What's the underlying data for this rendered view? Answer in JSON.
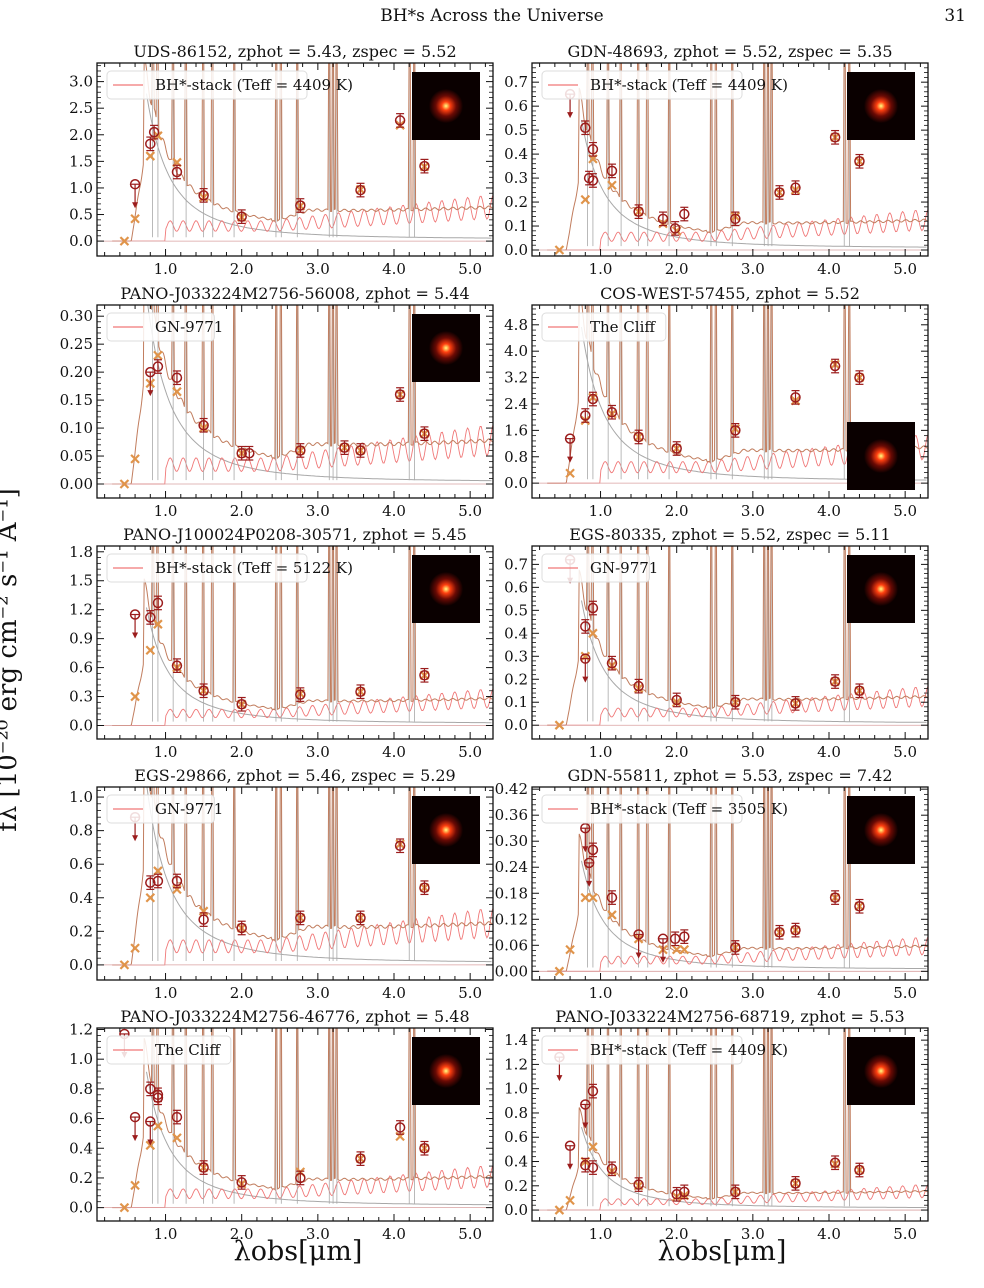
{
  "page": {
    "header_title": "BH*s Across the Universe",
    "page_number": "31"
  },
  "labels": {
    "ylabel": "fλ [10⁻²⁰ erg cm⁻² s⁻¹ Å⁻¹]",
    "xlabel": "λobs[μm]"
  },
  "colors": {
    "model": "#c17d5e",
    "template": "#f07878",
    "agn": "#a8a8a8",
    "obs": "#9b1c1c",
    "phot": "#e0944a"
  },
  "chart_data": [
    {
      "type": "line",
      "title": "UDS-86152, zphot = 5.43, zspec = 5.52",
      "legend": "BH*-stack (Teff = 4409 K)",
      "xlim": [
        0.1,
        5.3
      ],
      "ylim": [
        -0.28,
        3.35
      ],
      "yticks": [
        0.0,
        0.5,
        1.0,
        1.5,
        2.0,
        2.5,
        3.0
      ],
      "xticks": [
        1.0,
        2.0,
        3.0,
        4.0,
        5.0
      ],
      "inset": "top-right",
      "obs": [
        [
          0.6,
          1.07,
          1
        ],
        [
          0.8,
          1.83,
          0
        ],
        [
          0.85,
          2.05,
          0
        ],
        [
          1.15,
          1.3,
          0
        ],
        [
          1.5,
          0.86,
          0
        ],
        [
          2.0,
          0.46,
          0
        ],
        [
          2.77,
          0.67,
          0
        ],
        [
          3.56,
          0.96,
          0
        ],
        [
          4.08,
          2.27,
          0
        ],
        [
          4.4,
          1.41,
          0
        ]
      ],
      "phot": [
        [
          0.46,
          0.0
        ],
        [
          0.6,
          0.42
        ],
        [
          0.8,
          1.6
        ],
        [
          0.9,
          1.98
        ],
        [
          1.15,
          1.48
        ],
        [
          1.5,
          0.82
        ],
        [
          2.0,
          0.45
        ],
        [
          2.77,
          0.66
        ],
        [
          3.56,
          0.97
        ],
        [
          4.08,
          2.18
        ],
        [
          4.4,
          1.4
        ]
      ]
    },
    {
      "type": "line",
      "title": "GDN-48693, zphot = 5.52, zspec = 5.35",
      "legend": "BH*-stack (Teff = 4409 K)",
      "xlim": [
        0.1,
        5.3
      ],
      "ylim": [
        -0.025,
        0.78
      ],
      "yticks": [
        0.0,
        0.1,
        0.2,
        0.3,
        0.4,
        0.5,
        0.6,
        0.7
      ],
      "xticks": [
        1.0,
        2.0,
        3.0,
        4.0,
        5.0
      ],
      "inset": "top-right",
      "obs": [
        [
          0.6,
          0.65,
          1
        ],
        [
          0.8,
          0.51,
          0
        ],
        [
          0.85,
          0.3,
          0
        ],
        [
          0.9,
          0.42,
          0
        ],
        [
          0.9,
          0.29,
          0
        ],
        [
          1.15,
          0.33,
          0
        ],
        [
          1.5,
          0.16,
          0
        ],
        [
          1.82,
          0.13,
          0
        ],
        [
          1.98,
          0.09,
          0
        ],
        [
          2.1,
          0.15,
          0
        ],
        [
          2.77,
          0.13,
          0
        ],
        [
          3.35,
          0.24,
          0
        ],
        [
          3.56,
          0.26,
          0
        ],
        [
          4.08,
          0.47,
          0
        ],
        [
          4.4,
          0.37,
          0
        ]
      ],
      "phot": [
        [
          0.46,
          0.0
        ],
        [
          0.8,
          0.21
        ],
        [
          0.9,
          0.38
        ],
        [
          1.15,
          0.27
        ],
        [
          1.5,
          0.16
        ],
        [
          1.82,
          0.11
        ],
        [
          2.0,
          0.08
        ],
        [
          2.77,
          0.14
        ],
        [
          3.35,
          0.24
        ],
        [
          3.56,
          0.25
        ],
        [
          4.08,
          0.47
        ],
        [
          4.4,
          0.37
        ]
      ]
    },
    {
      "type": "line",
      "title": "PANO-J033224M2756-56008, zphot = 5.44",
      "legend": "GN-9771",
      "xlim": [
        0.1,
        5.3
      ],
      "ylim": [
        -0.025,
        0.32
      ],
      "yticks": [
        0.0,
        0.05,
        0.1,
        0.15,
        0.2,
        0.25,
        0.3
      ],
      "xticks": [
        1.0,
        2.0,
        3.0,
        4.0,
        5.0
      ],
      "inset": "top-right",
      "obs": [
        [
          0.8,
          0.2,
          1
        ],
        [
          0.9,
          0.21,
          0
        ],
        [
          1.15,
          0.19,
          0
        ],
        [
          1.5,
          0.105,
          0
        ],
        [
          2.0,
          0.055,
          0
        ],
        [
          2.1,
          0.055,
          0
        ],
        [
          2.77,
          0.06,
          0
        ],
        [
          3.35,
          0.065,
          0
        ],
        [
          3.56,
          0.06,
          0
        ],
        [
          4.08,
          0.16,
          0
        ],
        [
          4.4,
          0.09,
          0
        ]
      ],
      "phot": [
        [
          0.46,
          0.0
        ],
        [
          0.6,
          0.045
        ],
        [
          0.8,
          0.18
        ],
        [
          0.9,
          0.23
        ],
        [
          1.15,
          0.165
        ],
        [
          1.5,
          0.1
        ],
        [
          2.0,
          0.055
        ],
        [
          2.77,
          0.06
        ],
        [
          3.35,
          0.065
        ],
        [
          3.56,
          0.06
        ],
        [
          4.08,
          0.16
        ],
        [
          4.4,
          0.09
        ]
      ]
    },
    {
      "type": "line",
      "title": "COS-WEST-57455, zphot = 5.52",
      "legend": "The Cliff",
      "xlim": [
        0.1,
        5.3
      ],
      "ylim": [
        -0.45,
        5.4
      ],
      "yticks": [
        0.0,
        0.8,
        1.6,
        2.4,
        3.2,
        4.0,
        4.8
      ],
      "xticks": [
        1.0,
        2.0,
        3.0,
        4.0,
        5.0
      ],
      "inset": "bottom-right",
      "obs": [
        [
          0.6,
          1.35,
          1
        ],
        [
          0.8,
          2.05,
          0
        ],
        [
          0.9,
          2.55,
          0
        ],
        [
          1.15,
          2.15,
          0
        ],
        [
          1.5,
          1.4,
          0
        ],
        [
          2.0,
          1.05,
          0
        ],
        [
          2.77,
          1.6,
          0
        ],
        [
          3.56,
          2.6,
          0
        ],
        [
          4.08,
          3.55,
          0
        ],
        [
          4.4,
          3.2,
          0
        ]
      ],
      "phot": [
        [
          0.6,
          0.3
        ],
        [
          0.8,
          1.9
        ],
        [
          0.9,
          2.6
        ],
        [
          1.15,
          2.1
        ],
        [
          1.5,
          1.4
        ],
        [
          2.0,
          1.05
        ],
        [
          2.77,
          1.65
        ],
        [
          3.56,
          2.5
        ],
        [
          4.08,
          3.6
        ],
        [
          4.4,
          3.2
        ]
      ]
    },
    {
      "type": "line",
      "title": "PANO-J100024P0208-30571, zphot = 5.45",
      "legend": "BH*-stack (Teff = 5122 K)",
      "xlim": [
        0.1,
        5.3
      ],
      "ylim": [
        -0.14,
        1.86
      ],
      "yticks": [
        0.0,
        0.3,
        0.6,
        0.9,
        1.2,
        1.5,
        1.8
      ],
      "xticks": [
        1.0,
        2.0,
        3.0,
        4.0,
        5.0
      ],
      "inset": "top-right",
      "obs": [
        [
          0.6,
          1.15,
          1
        ],
        [
          0.8,
          1.12,
          0
        ],
        [
          0.9,
          1.27,
          0
        ],
        [
          1.15,
          0.62,
          0
        ],
        [
          1.5,
          0.36,
          0
        ],
        [
          2.0,
          0.22,
          0
        ],
        [
          2.77,
          0.32,
          0
        ],
        [
          3.56,
          0.35,
          0
        ],
        [
          4.4,
          0.52,
          0
        ]
      ],
      "phot": [
        [
          0.6,
          0.3
        ],
        [
          0.8,
          0.78
        ],
        [
          0.9,
          1.05
        ],
        [
          1.15,
          0.6
        ],
        [
          1.5,
          0.36
        ],
        [
          2.0,
          0.22
        ],
        [
          2.77,
          0.33
        ],
        [
          3.56,
          0.35
        ],
        [
          4.4,
          0.52
        ]
      ]
    },
    {
      "type": "line",
      "title": "EGS-80335, zphot = 5.52, zspec = 5.11",
      "legend": "GN-9771",
      "xlim": [
        0.1,
        5.3
      ],
      "ylim": [
        -0.06,
        0.78
      ],
      "yticks": [
        0.0,
        0.1,
        0.2,
        0.3,
        0.4,
        0.5,
        0.6,
        0.7
      ],
      "xticks": [
        1.0,
        2.0,
        3.0,
        4.0,
        5.0
      ],
      "inset": "top-right",
      "obs": [
        [
          0.6,
          0.72,
          1
        ],
        [
          0.8,
          0.43,
          0
        ],
        [
          0.8,
          0.29,
          1
        ],
        [
          0.9,
          0.51,
          0
        ],
        [
          1.15,
          0.27,
          0
        ],
        [
          1.5,
          0.17,
          0
        ],
        [
          2.0,
          0.11,
          0
        ],
        [
          2.77,
          0.1,
          0
        ],
        [
          3.56,
          0.095,
          0
        ],
        [
          4.08,
          0.19,
          0
        ],
        [
          4.4,
          0.15,
          0
        ]
      ],
      "phot": [
        [
          0.46,
          0.0
        ],
        [
          0.8,
          0.3
        ],
        [
          0.9,
          0.4
        ],
        [
          1.15,
          0.26
        ],
        [
          1.5,
          0.16
        ],
        [
          2.0,
          0.1
        ],
        [
          2.77,
          0.1
        ],
        [
          3.56,
          0.095
        ],
        [
          4.08,
          0.19
        ],
        [
          4.4,
          0.15
        ]
      ]
    },
    {
      "type": "line",
      "title": "EGS-29866, zphot = 5.46, zspec = 5.29",
      "legend": "GN-9771",
      "xlim": [
        0.1,
        5.3
      ],
      "ylim": [
        -0.09,
        1.06
      ],
      "yticks": [
        0.0,
        0.2,
        0.4,
        0.6,
        0.8,
        1.0
      ],
      "xticks": [
        1.0,
        2.0,
        3.0,
        4.0,
        5.0
      ],
      "inset": "top-right",
      "obs": [
        [
          0.6,
          0.88,
          1
        ],
        [
          0.8,
          0.49,
          0
        ],
        [
          0.9,
          0.5,
          0
        ],
        [
          1.15,
          0.5,
          0
        ],
        [
          1.5,
          0.27,
          0
        ],
        [
          2.0,
          0.22,
          0
        ],
        [
          2.77,
          0.28,
          0
        ],
        [
          3.56,
          0.28,
          0
        ],
        [
          4.08,
          0.71,
          0
        ],
        [
          4.4,
          0.46,
          0
        ]
      ],
      "phot": [
        [
          0.46,
          0.0
        ],
        [
          0.6,
          0.1
        ],
        [
          0.8,
          0.4
        ],
        [
          0.9,
          0.56
        ],
        [
          1.15,
          0.45
        ],
        [
          1.5,
          0.32
        ],
        [
          2.0,
          0.22
        ],
        [
          2.77,
          0.28
        ],
        [
          3.56,
          0.28
        ],
        [
          4.08,
          0.72
        ],
        [
          4.4,
          0.46
        ]
      ]
    },
    {
      "type": "line",
      "title": "GDN-55811, zphot = 5.53, zspec = 7.42",
      "legend": "BH*-stack (Teff = 3505 K)",
      "xlim": [
        0.1,
        5.3
      ],
      "ylim": [
        -0.02,
        0.425
      ],
      "yticks": [
        0.0,
        0.06,
        0.12,
        0.18,
        0.24,
        0.3,
        0.36,
        0.42
      ],
      "xticks": [
        1.0,
        2.0,
        3.0,
        4.0,
        5.0
      ],
      "inset": "top-right",
      "obs": [
        [
          0.8,
          0.33,
          1
        ],
        [
          0.85,
          0.25,
          1
        ],
        [
          0.9,
          0.28,
          0
        ],
        [
          1.15,
          0.17,
          0
        ],
        [
          1.5,
          0.085,
          1
        ],
        [
          1.82,
          0.075,
          1
        ],
        [
          1.98,
          0.075,
          0
        ],
        [
          2.1,
          0.08,
          0
        ],
        [
          2.77,
          0.055,
          0
        ],
        [
          3.35,
          0.09,
          0
        ],
        [
          3.56,
          0.095,
          0
        ],
        [
          4.08,
          0.17,
          0
        ],
        [
          4.4,
          0.15,
          0
        ]
      ],
      "phot": [
        [
          0.46,
          0.0
        ],
        [
          0.6,
          0.05
        ],
        [
          0.8,
          0.17
        ],
        [
          0.9,
          0.17
        ],
        [
          1.15,
          0.13
        ],
        [
          1.5,
          0.075
        ],
        [
          1.82,
          0.05
        ],
        [
          2.0,
          0.05
        ],
        [
          2.1,
          0.05
        ],
        [
          2.77,
          0.055
        ],
        [
          3.35,
          0.09
        ],
        [
          3.56,
          0.095
        ],
        [
          4.08,
          0.17
        ],
        [
          4.4,
          0.15
        ]
      ]
    },
    {
      "type": "line",
      "title": "PANO-J033224M2756-46776, zphot = 5.48",
      "legend": "The Cliff",
      "xlim": [
        0.1,
        5.3
      ],
      "ylim": [
        -0.09,
        1.21
      ],
      "yticks": [
        0.0,
        0.2,
        0.4,
        0.6,
        0.8,
        1.0,
        1.2
      ],
      "xticks": [
        1.0,
        2.0,
        3.0,
        4.0,
        5.0
      ],
      "inset": "top-right",
      "obs": [
        [
          0.46,
          1.17,
          1
        ],
        [
          0.6,
          0.61,
          1
        ],
        [
          0.8,
          0.58,
          1
        ],
        [
          0.8,
          0.8,
          0
        ],
        [
          0.9,
          0.76,
          0
        ],
        [
          0.9,
          0.74,
          0
        ],
        [
          1.15,
          0.61,
          0
        ],
        [
          1.5,
          0.27,
          0
        ],
        [
          2.0,
          0.17,
          0
        ],
        [
          2.77,
          0.2,
          0
        ],
        [
          3.56,
          0.33,
          0
        ],
        [
          4.08,
          0.54,
          0
        ],
        [
          4.4,
          0.4,
          0
        ]
      ],
      "phot": [
        [
          0.46,
          0.0
        ],
        [
          0.6,
          0.15
        ],
        [
          0.8,
          0.42
        ],
        [
          0.9,
          0.55
        ],
        [
          1.15,
          0.47
        ],
        [
          1.5,
          0.27
        ],
        [
          2.0,
          0.16
        ],
        [
          2.77,
          0.24
        ],
        [
          3.56,
          0.33
        ],
        [
          4.08,
          0.48
        ],
        [
          4.4,
          0.4
        ]
      ]
    },
    {
      "type": "line",
      "title": "PANO-J033224M2756-68719, zphot = 5.53",
      "legend": "BH*-stack (Teff = 4409 K)",
      "xlim": [
        0.1,
        5.3
      ],
      "ylim": [
        -0.09,
        1.5
      ],
      "yticks": [
        0.0,
        0.2,
        0.4,
        0.6,
        0.8,
        1.0,
        1.2,
        1.4
      ],
      "xticks": [
        1.0,
        2.0,
        3.0,
        4.0,
        5.0
      ],
      "inset": "top-right",
      "obs": [
        [
          0.46,
          1.26,
          1
        ],
        [
          0.6,
          0.53,
          1
        ],
        [
          0.8,
          0.87,
          1
        ],
        [
          0.8,
          0.37,
          0
        ],
        [
          0.9,
          0.98,
          0
        ],
        [
          0.9,
          0.35,
          0
        ],
        [
          1.15,
          0.34,
          0
        ],
        [
          1.5,
          0.21,
          0
        ],
        [
          2.0,
          0.13,
          0
        ],
        [
          2.1,
          0.15,
          0
        ],
        [
          2.77,
          0.15,
          0
        ],
        [
          3.56,
          0.22,
          0
        ],
        [
          4.08,
          0.39,
          0
        ],
        [
          4.4,
          0.33,
          0
        ]
      ],
      "phot": [
        [
          0.46,
          0.0
        ],
        [
          0.6,
          0.08
        ],
        [
          0.8,
          0.4
        ],
        [
          0.9,
          0.52
        ],
        [
          1.15,
          0.32
        ],
        [
          1.5,
          0.2
        ],
        [
          2.0,
          0.11
        ],
        [
          2.1,
          0.12
        ],
        [
          2.77,
          0.15
        ],
        [
          3.56,
          0.22
        ],
        [
          4.08,
          0.38
        ],
        [
          4.4,
          0.33
        ]
      ]
    }
  ]
}
